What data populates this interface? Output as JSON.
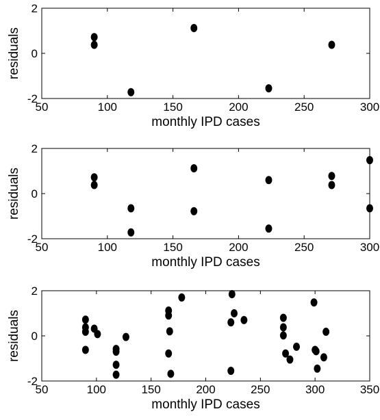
{
  "chart_data": [
    {
      "type": "scatter",
      "xlabel": "monthly IPD cases",
      "ylabel": "residuals",
      "xlim": [
        50,
        300
      ],
      "ylim": [
        -2,
        2
      ],
      "xticks": [
        50,
        100,
        150,
        200,
        250,
        300
      ],
      "yticks": [
        -2,
        0,
        2
      ],
      "grid": false,
      "points": [
        [
          90,
          0.72
        ],
        [
          90,
          0.38
        ],
        [
          118,
          -1.72
        ],
        [
          166,
          1.12
        ],
        [
          223,
          -1.55
        ],
        [
          271,
          0.38
        ]
      ]
    },
    {
      "type": "scatter",
      "xlabel": "monthly IPD cases",
      "ylabel": "residuals",
      "xlim": [
        50,
        300
      ],
      "ylim": [
        -2,
        2
      ],
      "xticks": [
        50,
        100,
        150,
        200,
        250,
        300
      ],
      "yticks": [
        -2,
        0,
        2
      ],
      "grid": false,
      "points": [
        [
          90,
          0.72
        ],
        [
          90,
          0.38
        ],
        [
          118,
          -0.65
        ],
        [
          118,
          -1.72
        ],
        [
          166,
          1.12
        ],
        [
          166,
          -0.78
        ],
        [
          223,
          0.6
        ],
        [
          223,
          -1.55
        ],
        [
          271,
          0.78
        ],
        [
          271,
          0.38
        ],
        [
          300,
          1.48
        ],
        [
          300,
          -0.65
        ]
      ]
    },
    {
      "type": "scatter",
      "xlabel": "monthly IPD cases",
      "ylabel": "residuals",
      "xlim": [
        50,
        350
      ],
      "ylim": [
        -2,
        2
      ],
      "xticks": [
        50,
        100,
        150,
        200,
        250,
        300,
        350
      ],
      "yticks": [
        -2,
        0,
        2
      ],
      "grid": false,
      "points": [
        [
          90,
          0.72
        ],
        [
          90,
          0.38
        ],
        [
          90,
          0.18
        ],
        [
          90,
          -0.62
        ],
        [
          98,
          0.32
        ],
        [
          101,
          0.08
        ],
        [
          118,
          -0.58
        ],
        [
          118,
          -0.7
        ],
        [
          118,
          -1.28
        ],
        [
          118,
          -1.72
        ],
        [
          127,
          -0.05
        ],
        [
          166,
          1.12
        ],
        [
          166,
          0.9
        ],
        [
          167,
          0.2
        ],
        [
          166,
          -0.78
        ],
        [
          168,
          -1.68
        ],
        [
          178,
          1.7
        ],
        [
          223,
          0.6
        ],
        [
          224,
          1.85
        ],
        [
          226,
          1.0
        ],
        [
          223,
          -1.55
        ],
        [
          235,
          0.7
        ],
        [
          271,
          0.8
        ],
        [
          271,
          0.38
        ],
        [
          271,
          0.02
        ],
        [
          273,
          -0.78
        ],
        [
          277,
          -1.05
        ],
        [
          283,
          -0.48
        ],
        [
          299,
          1.48
        ],
        [
          300,
          -0.62
        ],
        [
          301,
          -0.68
        ],
        [
          302,
          -1.45
        ],
        [
          308,
          -0.95
        ],
        [
          310,
          0.18
        ]
      ]
    }
  ]
}
